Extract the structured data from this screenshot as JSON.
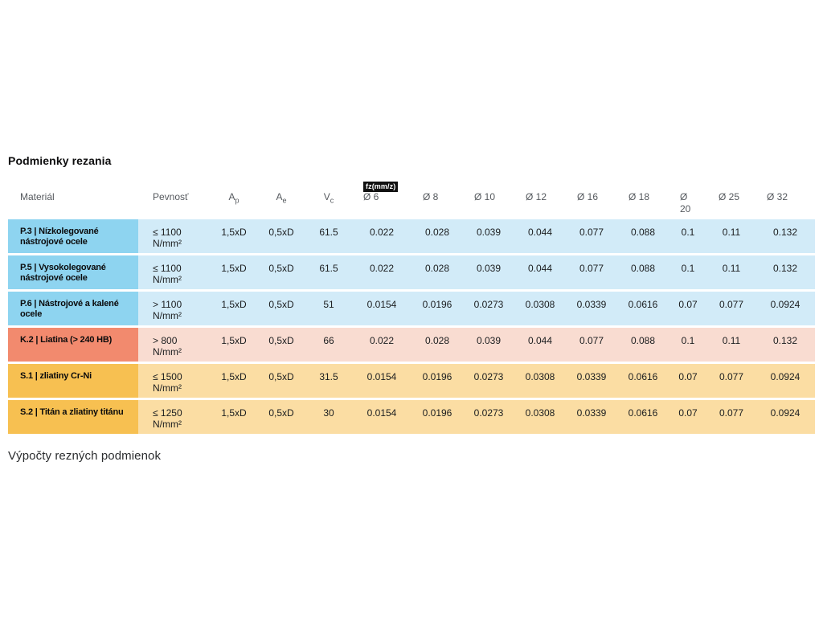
{
  "page": {
    "title": "Podmienky rezania",
    "footer_heading": "Výpočty rezných podmienok"
  },
  "table": {
    "badge": "fz(mm/z)",
    "columns": {
      "material": "Materiál",
      "pevnost": "Pevnosť",
      "ap": {
        "base": "A",
        "sub": "p"
      },
      "ae": {
        "base": "A",
        "sub": "e"
      },
      "vc": {
        "base": "V",
        "sub": "c"
      },
      "diameters": [
        "Ø 6",
        "Ø 8",
        "Ø 10",
        "Ø 12",
        "Ø 16",
        "Ø 18",
        "Ø 20",
        "Ø 25",
        "Ø 32"
      ]
    },
    "rows": [
      {
        "group": "blue",
        "material": "P.3 | Nízkolegované nástrojové ocele",
        "pevnost": "≤ 1100 N/mm²",
        "ap": "1,5xD",
        "ae": "0,5xD",
        "vc": "61.5",
        "fz": [
          "0.022",
          "0.028",
          "0.039",
          "0.044",
          "0.077",
          "0.088",
          "0.1",
          "0.11",
          "0.132"
        ]
      },
      {
        "group": "blue",
        "material": "P.5 | Vysokolegované nástrojové ocele",
        "pevnost": "≤ 1100 N/mm²",
        "ap": "1,5xD",
        "ae": "0,5xD",
        "vc": "61.5",
        "fz": [
          "0.022",
          "0.028",
          "0.039",
          "0.044",
          "0.077",
          "0.088",
          "0.1",
          "0.11",
          "0.132"
        ]
      },
      {
        "group": "blue",
        "material": "P.6 | Nástrojové a kalené ocele",
        "pevnost": "> 1100 N/mm²",
        "ap": "1,5xD",
        "ae": "0,5xD",
        "vc": "51",
        "fz": [
          "0.0154",
          "0.0196",
          "0.0273",
          "0.0308",
          "0.0339",
          "0.0616",
          "0.07",
          "0.077",
          "0.0924"
        ]
      },
      {
        "group": "red",
        "material": "K.2 | Liatina (> 240 HB)",
        "pevnost": "> 800 N/mm²",
        "ap": "1,5xD",
        "ae": "0,5xD",
        "vc": "66",
        "fz": [
          "0.022",
          "0.028",
          "0.039",
          "0.044",
          "0.077",
          "0.088",
          "0.1",
          "0.11",
          "0.132"
        ]
      },
      {
        "group": "orange",
        "material": "S.1 | zliatiny Cr-Ni",
        "pevnost": "≤ 1500 N/mm²",
        "ap": "1,5xD",
        "ae": "0,5xD",
        "vc": "31.5",
        "fz": [
          "0.0154",
          "0.0196",
          "0.0273",
          "0.0308",
          "0.0339",
          "0.0616",
          "0.07",
          "0.077",
          "0.0924"
        ]
      },
      {
        "group": "orange",
        "material": "S.2 | Titán a zliatiny titánu",
        "pevnost": "≤ 1250 N/mm²",
        "ap": "1,5xD",
        "ae": "0,5xD",
        "vc": "30",
        "fz": [
          "0.0154",
          "0.0196",
          "0.0273",
          "0.0308",
          "0.0339",
          "0.0616",
          "0.07",
          "0.077",
          "0.0924"
        ]
      }
    ]
  },
  "colors": {
    "blue_material": "#8ed4f0",
    "blue_row": "#d2ebf8",
    "red_material": "#f28a6e",
    "red_row": "#f9dcd1",
    "orange_material": "#f7c051",
    "orange_row": "#fbdda3",
    "badge_bg": "#111111",
    "badge_text": "#ffffff",
    "header_text": "#55595e",
    "body_text": "#1b1d1f"
  }
}
